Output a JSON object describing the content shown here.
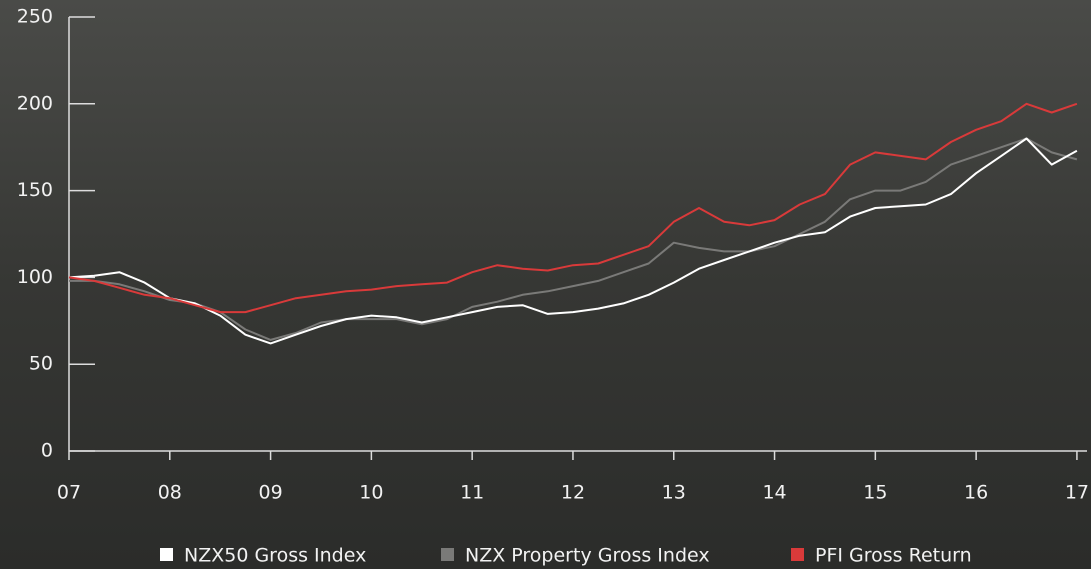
{
  "chart_data": {
    "type": "line",
    "x": [
      7,
      7.25,
      7.5,
      7.75,
      8,
      8.25,
      8.5,
      8.75,
      9,
      9.25,
      9.5,
      9.75,
      10,
      10.25,
      10.5,
      10.75,
      11,
      11.25,
      11.5,
      11.75,
      12,
      12.25,
      12.5,
      12.75,
      13,
      13.25,
      13.5,
      13.75,
      14,
      14.25,
      14.5,
      14.75,
      15,
      15.25,
      15.5,
      15.75,
      16,
      16.25,
      16.5,
      16.75,
      17
    ],
    "series": [
      {
        "name": "NZX Property Gross Index",
        "color": "#7a7a78",
        "values": [
          98,
          98,
          96,
          92,
          87,
          85,
          80,
          70,
          64,
          68,
          74,
          76,
          76,
          76,
          73,
          76,
          83,
          86,
          90,
          92,
          95,
          98,
          103,
          108,
          120,
          117,
          115,
          115,
          118,
          125,
          132,
          145,
          150,
          150,
          155,
          165,
          170,
          175,
          180,
          172,
          168
        ]
      },
      {
        "name": "NZX50 Gross Index",
        "color": "#ffffff",
        "values": [
          100,
          101,
          103,
          97,
          88,
          85,
          78,
          67,
          62,
          67,
          72,
          76,
          78,
          77,
          74,
          77,
          80,
          83,
          84,
          79,
          80,
          82,
          85,
          90,
          97,
          105,
          110,
          115,
          120,
          124,
          126,
          135,
          140,
          141,
          142,
          148,
          160,
          170,
          180,
          165,
          173
        ]
      },
      {
        "name": "PFI Gross Return",
        "color": "#d93a3a",
        "values": [
          100,
          98,
          94,
          90,
          88,
          84,
          80,
          80,
          84,
          88,
          90,
          92,
          93,
          95,
          96,
          97,
          103,
          107,
          105,
          104,
          107,
          108,
          113,
          118,
          132,
          140,
          132,
          130,
          133,
          142,
          148,
          165,
          172,
          170,
          168,
          178,
          185,
          190,
          200,
          195,
          200
        ]
      }
    ],
    "legend_order": [
      1,
      0,
      2
    ],
    "xlim": [
      7,
      17.1
    ],
    "xticks": [
      {
        "value": 7,
        "label": "07"
      },
      {
        "value": 8,
        "label": "08"
      },
      {
        "value": 9,
        "label": "09"
      },
      {
        "value": 10,
        "label": "10"
      },
      {
        "value": 11,
        "label": "11"
      },
      {
        "value": 12,
        "label": "12"
      },
      {
        "value": 13,
        "label": "13"
      },
      {
        "value": 14,
        "label": "14"
      },
      {
        "value": 15,
        "label": "15"
      },
      {
        "value": 16,
        "label": "16"
      },
      {
        "value": 17,
        "label": "17"
      }
    ],
    "ylim": [
      0,
      250
    ],
    "yticks": [
      0,
      50,
      100,
      150,
      200,
      250
    ],
    "grid": false,
    "legend": "bottom"
  }
}
